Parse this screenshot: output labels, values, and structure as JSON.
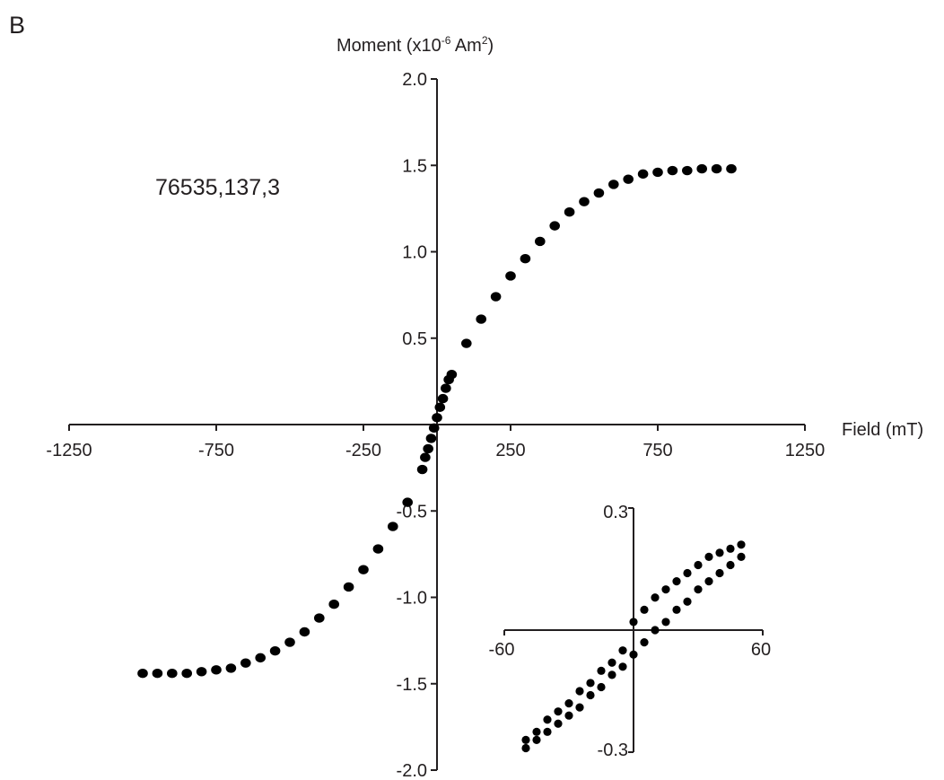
{
  "panel_label": "B",
  "sample_label": "76535,137,3",
  "chart_data": [
    {
      "type": "scatter",
      "ylabel_main": "Moment (x10",
      "ylabel_exp": "-6",
      "ylabel_unit": " Am",
      "ylabel_unit_exp": "2",
      "ylabel_close": ")",
      "xlabel": "Field (mT)",
      "xlim": [
        -1250,
        1250
      ],
      "ylim": [
        -2.0,
        2.0
      ],
      "x_ticks": [
        -1250,
        -750,
        -250,
        250,
        750,
        1250
      ],
      "x_tick_labels": [
        "-1250",
        "-750",
        "-250",
        "250",
        "750",
        "1250"
      ],
      "y_ticks": [
        -2.0,
        -1.5,
        -1.0,
        -0.5,
        0.5,
        1.0,
        1.5,
        2.0
      ],
      "y_tick_labels": [
        "-2.0",
        "-1.5",
        "-1.0",
        "-0.5",
        "0.5",
        "1.0",
        "1.5",
        "2.0"
      ],
      "grid": false,
      "marker_color": "#000000",
      "axis_color": "#231f20",
      "series": [
        {
          "x": [
            -1000,
            -950,
            -900,
            -850,
            -800,
            -750,
            -700,
            -650,
            -600,
            -550,
            -500,
            -450,
            -400,
            -350,
            -300,
            -250,
            -200,
            -150,
            -100,
            -50,
            -40,
            -30,
            -20,
            -10,
            0,
            10,
            20,
            30,
            40,
            50,
            100,
            150,
            200,
            250,
            300,
            350,
            400,
            450,
            500,
            550,
            600,
            650,
            700,
            750,
            800,
            850,
            900,
            950,
            1000
          ],
          "y": [
            -1.44,
            -1.44,
            -1.44,
            -1.44,
            -1.43,
            -1.42,
            -1.41,
            -1.38,
            -1.35,
            -1.31,
            -1.26,
            -1.2,
            -1.12,
            -1.04,
            -0.94,
            -0.84,
            -0.72,
            -0.59,
            -0.45,
            -0.26,
            -0.19,
            -0.14,
            -0.08,
            -0.02,
            0.04,
            0.1,
            0.15,
            0.21,
            0.26,
            0.29,
            0.47,
            0.61,
            0.74,
            0.86,
            0.96,
            1.06,
            1.15,
            1.23,
            1.29,
            1.34,
            1.39,
            1.42,
            1.45,
            1.46,
            1.47,
            1.47,
            1.48,
            1.48,
            1.48
          ]
        }
      ]
    },
    {
      "type": "scatter",
      "role": "inset",
      "xlim": [
        -60,
        60
      ],
      "ylim": [
        -0.3,
        0.3
      ],
      "x_tick_labels": [
        "-60",
        "60"
      ],
      "y_tick_labels": [
        "0.3",
        "-0.3"
      ],
      "grid": false,
      "marker_color": "#000000",
      "axis_color": "#231f20",
      "series": [
        {
          "x": [
            -50,
            -45,
            -40,
            -35,
            -30,
            -25,
            -20,
            -15,
            -10,
            -5,
            0,
            5,
            10,
            15,
            20,
            25,
            30,
            35,
            40,
            45,
            50
          ],
          "y": [
            -0.29,
            -0.27,
            -0.25,
            -0.23,
            -0.21,
            -0.19,
            -0.16,
            -0.14,
            -0.11,
            -0.09,
            -0.06,
            -0.03,
            0.0,
            0.02,
            0.05,
            0.07,
            0.1,
            0.12,
            0.14,
            0.16,
            0.18
          ]
        },
        {
          "x": [
            -50,
            -45,
            -40,
            -35,
            -30,
            -25,
            -20,
            -15,
            -10,
            -5,
            0,
            5,
            10,
            15,
            20,
            25,
            30,
            35,
            40,
            45,
            50
          ],
          "y": [
            -0.27,
            -0.25,
            -0.22,
            -0.2,
            -0.18,
            -0.15,
            -0.13,
            -0.1,
            -0.08,
            -0.05,
            0.02,
            0.05,
            0.08,
            0.1,
            0.12,
            0.14,
            0.16,
            0.18,
            0.19,
            0.2,
            0.21
          ]
        }
      ]
    }
  ]
}
